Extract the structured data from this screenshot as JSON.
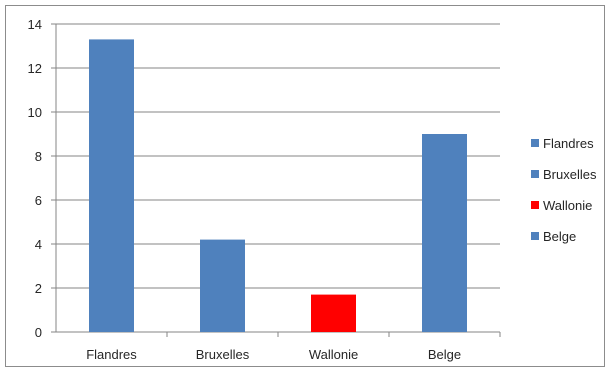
{
  "chart_data": {
    "type": "bar",
    "categories": [
      "Flandres",
      "Bruxelles",
      "Wallonie",
      "Belge"
    ],
    "values": [
      13.3,
      4.2,
      1.7,
      9.0
    ],
    "bar_colors": [
      "#4f81bd",
      "#4f81bd",
      "#ff0000",
      "#4f81bd"
    ],
    "ylim": [
      0,
      14
    ],
    "yticks": [
      0,
      2,
      4,
      6,
      8,
      10,
      12,
      14
    ],
    "grid": true,
    "legend_position": "right",
    "legend": [
      {
        "label": "Flandres",
        "color": "#4f81bd"
      },
      {
        "label": "Bruxelles",
        "color": "#4f81bd"
      },
      {
        "label": "Wallonie",
        "color": "#ff0000"
      },
      {
        "label": "Belge",
        "color": "#4f81bd"
      }
    ]
  }
}
